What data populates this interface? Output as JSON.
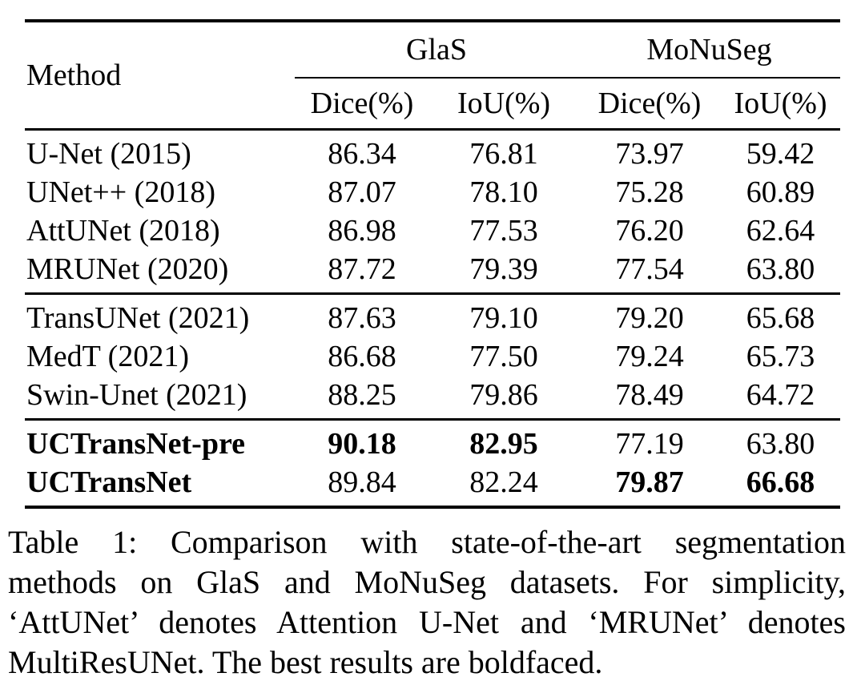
{
  "table": {
    "method_header": "Method",
    "dataset_headers": [
      "GlaS",
      "MoNuSeg"
    ],
    "metric_headers": [
      "Dice(%)",
      "IoU(%)",
      "Dice(%)",
      "IoU(%)"
    ],
    "groups": [
      {
        "rows": [
          {
            "method": "U-Net (2015)",
            "values": [
              "86.34",
              "76.81",
              "73.97",
              "59.42"
            ]
          },
          {
            "method": "UNet++ (2018)",
            "values": [
              "87.07",
              "78.10",
              "75.28",
              "60.89"
            ]
          },
          {
            "method": "AttUNet (2018)",
            "values": [
              "86.98",
              "77.53",
              "76.20",
              "62.64"
            ]
          },
          {
            "method": "MRUNet (2020)",
            "values": [
              "87.72",
              "79.39",
              "77.54",
              "63.80"
            ]
          }
        ]
      },
      {
        "rows": [
          {
            "method": "TransUNet (2021)",
            "values": [
              "87.63",
              "79.10",
              "79.20",
              "65.68"
            ]
          },
          {
            "method": "MedT (2021)",
            "values": [
              "86.68",
              "77.50",
              "79.24",
              "65.73"
            ]
          },
          {
            "method": "Swin-Unet (2021)",
            "values": [
              "88.25",
              "79.86",
              "78.49",
              "64.72"
            ]
          }
        ]
      },
      {
        "rows": [
          {
            "method": "UCTransNet-pre",
            "values": [
              "90.18",
              "82.95",
              "77.19",
              "63.80"
            ]
          },
          {
            "method": "UCTransNet",
            "values": [
              "89.84",
              "82.24",
              "79.87",
              "66.68"
            ]
          }
        ]
      }
    ],
    "bold_cells_note": "best results boldfaced"
  },
  "caption": {
    "lines": [
      "Table 1: Comparison with state-of-the-art segmentation",
      "methods on GlaS and MoNuSeg datasets. For simplicity,",
      "‘AttUNet’ denotes Attention U-Net and ‘MRUNet’ denotes",
      "MultiResUNet. The best results are boldfaced."
    ]
  }
}
